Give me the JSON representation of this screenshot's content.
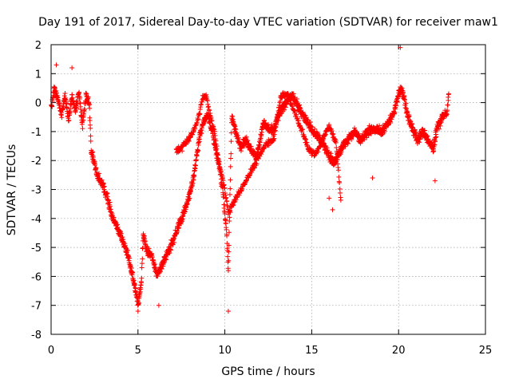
{
  "chart_data": {
    "type": "scatter",
    "title": "Day 191 of 2017, Sidereal Day-to-day VTEC variation (SDTVAR) for receiver maw1",
    "xlabel": "GPS time / hours",
    "ylabel": "SDTVAR / TECUs",
    "xlim": [
      0,
      25
    ],
    "ylim": [
      -8,
      2
    ],
    "x_ticks": [
      0,
      5,
      10,
      15,
      20,
      25
    ],
    "y_ticks": [
      -8,
      -7,
      -6,
      -5,
      -4,
      -3,
      -2,
      -1,
      0,
      1,
      2
    ],
    "grid": true,
    "marker": "plus",
    "series": [
      {
        "name": "maw1",
        "color": "#ff0000",
        "trend": [
          [
            0.0,
            -0.2
          ],
          [
            0.2,
            0.5
          ],
          [
            0.4,
            0.1
          ],
          [
            0.6,
            -0.4
          ],
          [
            0.8,
            0.3
          ],
          [
            1.0,
            -0.6
          ],
          [
            1.2,
            0.2
          ],
          [
            1.4,
            -0.3
          ],
          [
            1.6,
            0.4
          ],
          [
            1.8,
            -0.8
          ],
          [
            2.0,
            0.2
          ],
          [
            2.2,
            0.0
          ],
          [
            2.3,
            -1.6
          ],
          [
            2.6,
            -2.4
          ],
          [
            2.9,
            -2.8
          ],
          [
            3.2,
            -3.2
          ],
          [
            3.5,
            -3.9
          ],
          [
            3.8,
            -4.3
          ],
          [
            4.1,
            -4.7
          ],
          [
            4.4,
            -5.2
          ],
          [
            4.7,
            -6.0
          ],
          [
            4.9,
            -6.6
          ],
          [
            5.0,
            -7.0
          ],
          [
            5.2,
            -6.2
          ],
          [
            5.3,
            -4.5
          ],
          [
            5.5,
            -5.1
          ],
          [
            5.8,
            -5.3
          ],
          [
            6.1,
            -6.0
          ],
          [
            6.4,
            -5.6
          ],
          [
            6.7,
            -5.2
          ],
          [
            7.0,
            -4.8
          ],
          [
            7.3,
            -4.3
          ],
          [
            7.6,
            -3.9
          ],
          [
            7.9,
            -3.3
          ],
          [
            8.2,
            -2.6
          ],
          [
            8.4,
            -1.7
          ],
          [
            8.6,
            -1.0
          ],
          [
            8.8,
            -0.6
          ],
          [
            9.0,
            -0.4
          ],
          [
            9.2,
            -0.8
          ],
          [
            9.4,
            -1.4
          ],
          [
            9.7,
            -2.3
          ],
          [
            9.9,
            -3.1
          ],
          [
            10.1,
            -4.5
          ],
          [
            10.2,
            -5.8
          ],
          [
            10.4,
            -0.4
          ],
          [
            10.6,
            -1.0
          ],
          [
            10.9,
            -1.5
          ],
          [
            11.2,
            -1.3
          ],
          [
            11.5,
            -1.6
          ],
          [
            11.8,
            -1.9
          ],
          [
            12.0,
            -1.4
          ],
          [
            12.2,
            -0.7
          ],
          [
            12.5,
            -0.9
          ],
          [
            12.8,
            -1.0
          ],
          [
            13.0,
            -0.6
          ],
          [
            13.3,
            -0.2
          ],
          [
            13.6,
            0.1
          ],
          [
            13.9,
            0.2
          ],
          [
            14.2,
            -0.1
          ],
          [
            14.5,
            -0.4
          ],
          [
            14.8,
            -0.7
          ],
          [
            15.1,
            -1.0
          ],
          [
            15.4,
            -1.2
          ],
          [
            15.7,
            -1.5
          ],
          [
            16.0,
            -1.8
          ],
          [
            16.3,
            -2.1
          ],
          [
            16.6,
            -1.7
          ],
          [
            16.9,
            -1.4
          ],
          [
            17.2,
            -1.2
          ],
          [
            17.5,
            -1.0
          ],
          [
            17.8,
            -1.3
          ],
          [
            18.2,
            -1.0
          ],
          [
            18.6,
            -0.9
          ],
          [
            19.0,
            -1.0
          ],
          [
            19.4,
            -0.7
          ],
          [
            19.7,
            -0.4
          ],
          [
            20.0,
            0.3
          ],
          [
            20.2,
            0.5
          ],
          [
            20.5,
            -0.4
          ],
          [
            20.8,
            -0.9
          ],
          [
            21.1,
            -1.3
          ],
          [
            21.4,
            -1.0
          ],
          [
            21.7,
            -1.3
          ],
          [
            22.0,
            -1.6
          ],
          [
            22.2,
            -0.9
          ],
          [
            22.5,
            -0.5
          ],
          [
            22.8,
            -0.3
          ],
          [
            22.9,
            0.4
          ]
        ],
        "secondary_trend": [
          [
            7.2,
            -1.7
          ],
          [
            7.6,
            -1.5
          ],
          [
            8.0,
            -1.2
          ],
          [
            8.4,
            -0.7
          ],
          [
            8.7,
            0.1
          ],
          [
            8.9,
            0.3
          ],
          [
            9.1,
            -0.3
          ],
          [
            9.4,
            -1.0
          ],
          [
            9.7,
            -2.2
          ],
          [
            10.0,
            -3.0
          ],
          [
            10.2,
            -3.8
          ],
          [
            12.4,
            -1.4
          ],
          [
            12.8,
            -1.3
          ],
          [
            13.2,
            0.2
          ],
          [
            13.6,
            0.3
          ],
          [
            14.0,
            -0.3
          ],
          [
            14.4,
            -0.9
          ],
          [
            14.8,
            -1.6
          ],
          [
            15.2,
            -1.8
          ],
          [
            15.6,
            -1.3
          ],
          [
            16.0,
            -0.8
          ],
          [
            16.4,
            -1.4
          ],
          [
            16.7,
            -3.5
          ]
        ],
        "outliers": [
          [
            0.3,
            1.3
          ],
          [
            1.2,
            1.2
          ],
          [
            5.0,
            -7.2
          ],
          [
            6.2,
            -7.0
          ],
          [
            10.2,
            -7.2
          ],
          [
            16.0,
            -3.3
          ],
          [
            16.2,
            -3.7
          ],
          [
            18.5,
            -2.6
          ],
          [
            20.1,
            1.9
          ],
          [
            22.1,
            -2.7
          ]
        ]
      }
    ]
  }
}
